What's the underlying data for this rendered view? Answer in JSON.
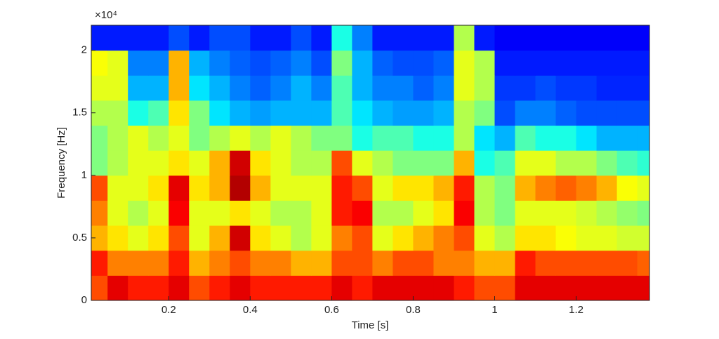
{
  "chart_data": {
    "type": "heatmap",
    "colormap": "jet",
    "clim": [
      0,
      1
    ],
    "xlabel": "Time [s]",
    "ylabel": "Frequency [Hz]",
    "y_multiplier": "×10⁴",
    "x": [
      0.025,
      0.075,
      0.125,
      0.175,
      0.225,
      0.275,
      0.325,
      0.375,
      0.425,
      0.475,
      0.525,
      0.575,
      0.625,
      0.675,
      0.725,
      0.775,
      0.825,
      0.875,
      0.925,
      0.975,
      1.025,
      1.075,
      1.125,
      1.175,
      1.225,
      1.275,
      1.325,
      1.375
    ],
    "x_width": 0.05,
    "y": [
      1000,
      3000,
      5000,
      7000,
      9000,
      11000,
      13000,
      15000,
      17000,
      19000,
      21000
    ],
    "y_height": 2000,
    "z": [
      [
        0.8,
        0.9,
        0.85,
        0.85,
        0.9,
        0.8,
        0.85,
        0.9,
        0.85,
        0.85,
        0.85,
        0.85,
        0.9,
        0.85,
        0.9,
        0.9,
        0.9,
        0.9,
        0.85,
        0.8,
        0.8,
        0.9,
        0.9,
        0.9,
        0.9,
        0.9,
        0.9,
        0.9
      ],
      [
        0.85,
        0.75,
        0.75,
        0.75,
        0.85,
        0.7,
        0.75,
        0.8,
        0.75,
        0.75,
        0.7,
        0.7,
        0.8,
        0.8,
        0.75,
        0.8,
        0.8,
        0.75,
        0.75,
        0.7,
        0.7,
        0.85,
        0.8,
        0.8,
        0.8,
        0.8,
        0.8,
        0.78
      ],
      [
        0.7,
        0.65,
        0.6,
        0.65,
        0.8,
        0.6,
        0.7,
        0.92,
        0.65,
        0.6,
        0.55,
        0.6,
        0.75,
        0.8,
        0.6,
        0.65,
        0.7,
        0.75,
        0.8,
        0.6,
        0.55,
        0.65,
        0.65,
        0.62,
        0.6,
        0.6,
        0.58,
        0.58
      ],
      [
        0.75,
        0.6,
        0.55,
        0.6,
        0.88,
        0.6,
        0.6,
        0.65,
        0.6,
        0.55,
        0.55,
        0.6,
        0.85,
        0.88,
        0.55,
        0.55,
        0.6,
        0.65,
        0.88,
        0.55,
        0.5,
        0.6,
        0.6,
        0.6,
        0.58,
        0.55,
        0.52,
        0.5
      ],
      [
        0.8,
        0.6,
        0.6,
        0.65,
        0.9,
        0.65,
        0.7,
        0.95,
        0.7,
        0.6,
        0.6,
        0.6,
        0.85,
        0.8,
        0.6,
        0.65,
        0.65,
        0.7,
        0.85,
        0.55,
        0.5,
        0.7,
        0.75,
        0.78,
        0.75,
        0.7,
        0.62,
        0.6
      ],
      [
        0.5,
        0.55,
        0.6,
        0.6,
        0.65,
        0.6,
        0.7,
        0.92,
        0.65,
        0.6,
        0.55,
        0.55,
        0.8,
        0.6,
        0.55,
        0.5,
        0.5,
        0.5,
        0.7,
        0.4,
        0.45,
        0.6,
        0.6,
        0.55,
        0.55,
        0.5,
        0.45,
        0.42
      ],
      [
        0.5,
        0.55,
        0.6,
        0.55,
        0.6,
        0.5,
        0.55,
        0.6,
        0.55,
        0.6,
        0.55,
        0.5,
        0.5,
        0.4,
        0.45,
        0.45,
        0.4,
        0.4,
        0.55,
        0.35,
        0.3,
        0.45,
        0.4,
        0.4,
        0.35,
        0.3,
        0.3,
        0.3
      ],
      [
        0.55,
        0.55,
        0.4,
        0.45,
        0.65,
        0.5,
        0.35,
        0.3,
        0.28,
        0.3,
        0.3,
        0.3,
        0.45,
        0.35,
        0.3,
        0.28,
        0.28,
        0.3,
        0.55,
        0.5,
        0.2,
        0.25,
        0.25,
        0.22,
        0.2,
        0.2,
        0.2,
        0.2
      ],
      [
        0.6,
        0.6,
        0.3,
        0.3,
        0.7,
        0.35,
        0.3,
        0.25,
        0.22,
        0.25,
        0.3,
        0.25,
        0.45,
        0.3,
        0.25,
        0.25,
        0.22,
        0.25,
        0.6,
        0.55,
        0.18,
        0.18,
        0.2,
        0.18,
        0.18,
        0.16,
        0.16,
        0.16
      ],
      [
        0.62,
        0.6,
        0.25,
        0.25,
        0.7,
        0.3,
        0.25,
        0.22,
        0.2,
        0.22,
        0.25,
        0.2,
        0.5,
        0.3,
        0.22,
        0.2,
        0.2,
        0.22,
        0.6,
        0.55,
        0.15,
        0.15,
        0.15,
        0.15,
        0.15,
        0.15,
        0.15,
        0.15
      ],
      [
        0.15,
        0.15,
        0.15,
        0.15,
        0.2,
        0.15,
        0.2,
        0.2,
        0.15,
        0.15,
        0.2,
        0.15,
        0.4,
        0.25,
        0.15,
        0.15,
        0.15,
        0.15,
        0.55,
        0.15,
        0.12,
        0.12,
        0.12,
        0.12,
        0.12,
        0.12,
        0.12,
        0.12
      ]
    ],
    "xlim": [
      0.01,
      1.38
    ],
    "ylim": [
      0,
      22000
    ],
    "xticks": [
      0.2,
      0.4,
      0.6,
      0.8,
      1,
      1.2
    ],
    "yticks": [
      0,
      {
        "value": 5000,
        "label": "0.5"
      },
      {
        "value": 10000,
        "label": "1"
      },
      {
        "value": 15000,
        "label": "1.5"
      },
      {
        "value": 20000,
        "label": "2"
      }
    ]
  }
}
